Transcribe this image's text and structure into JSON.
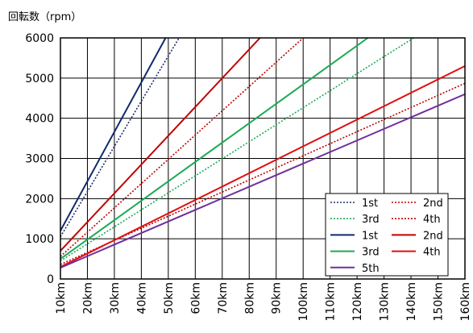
{
  "chart_data": {
    "type": "line",
    "title": "",
    "xlabel": "",
    "ylabel": "回転数（rpm）",
    "x": [
      10,
      20,
      30,
      40,
      50,
      60,
      70,
      80,
      90,
      100,
      110,
      120,
      130,
      140,
      150,
      160
    ],
    "x_tick_labels": [
      "10km",
      "20km",
      "30km",
      "40km",
      "50km",
      "60km",
      "70km",
      "80km",
      "90km",
      "100km",
      "110km",
      "120km",
      "130km",
      "140km",
      "150km",
      "160km"
    ],
    "xlim": [
      10,
      160
    ],
    "ylim": [
      0,
      6000
    ],
    "y_ticks": [
      0,
      1000,
      2000,
      3000,
      4000,
      5000,
      6000
    ],
    "grid": true,
    "legend_position": "bottom-right",
    "series": [
      {
        "name": "1st",
        "color": "#1f2d6b",
        "style": "dotted",
        "points": [
          [
            10,
            1050
          ],
          [
            54,
            6000
          ]
        ]
      },
      {
        "name": "2nd",
        "color": "#c00000",
        "style": "dotted",
        "points": [
          [
            10,
            560
          ],
          [
            100,
            6000
          ]
        ]
      },
      {
        "name": "3rd",
        "color": "#1aab55",
        "style": "dotted",
        "points": [
          [
            10,
            450
          ],
          [
            141,
            6000
          ]
        ]
      },
      {
        "name": "4th",
        "color": "#c00000",
        "style": "dotted",
        "points": [
          [
            10,
            360
          ],
          [
            160,
            4870
          ]
        ]
      },
      {
        "name": "1st",
        "color": "#0f2a6b",
        "style": "solid",
        "points": [
          [
            10,
            1200
          ],
          [
            49,
            6000
          ]
        ]
      },
      {
        "name": "2nd",
        "color": "#c00000",
        "style": "solid",
        "points": [
          [
            10,
            700
          ],
          [
            84,
            6000
          ]
        ]
      },
      {
        "name": "3rd",
        "color": "#1aab55",
        "style": "solid",
        "points": [
          [
            10,
            500
          ],
          [
            124,
            6000
          ]
        ]
      },
      {
        "name": "4th",
        "color": "#e01010",
        "style": "solid",
        "points": [
          [
            10,
            300
          ],
          [
            160,
            5300
          ]
        ]
      },
      {
        "name": "5th",
        "color": "#7030a0",
        "style": "solid",
        "points": [
          [
            10,
            280
          ],
          [
            160,
            4600
          ]
        ]
      }
    ]
  },
  "legend_layout": [
    [
      0,
      1
    ],
    [
      2,
      3
    ],
    [
      4,
      5
    ],
    [
      6,
      7
    ],
    [
      8
    ]
  ]
}
